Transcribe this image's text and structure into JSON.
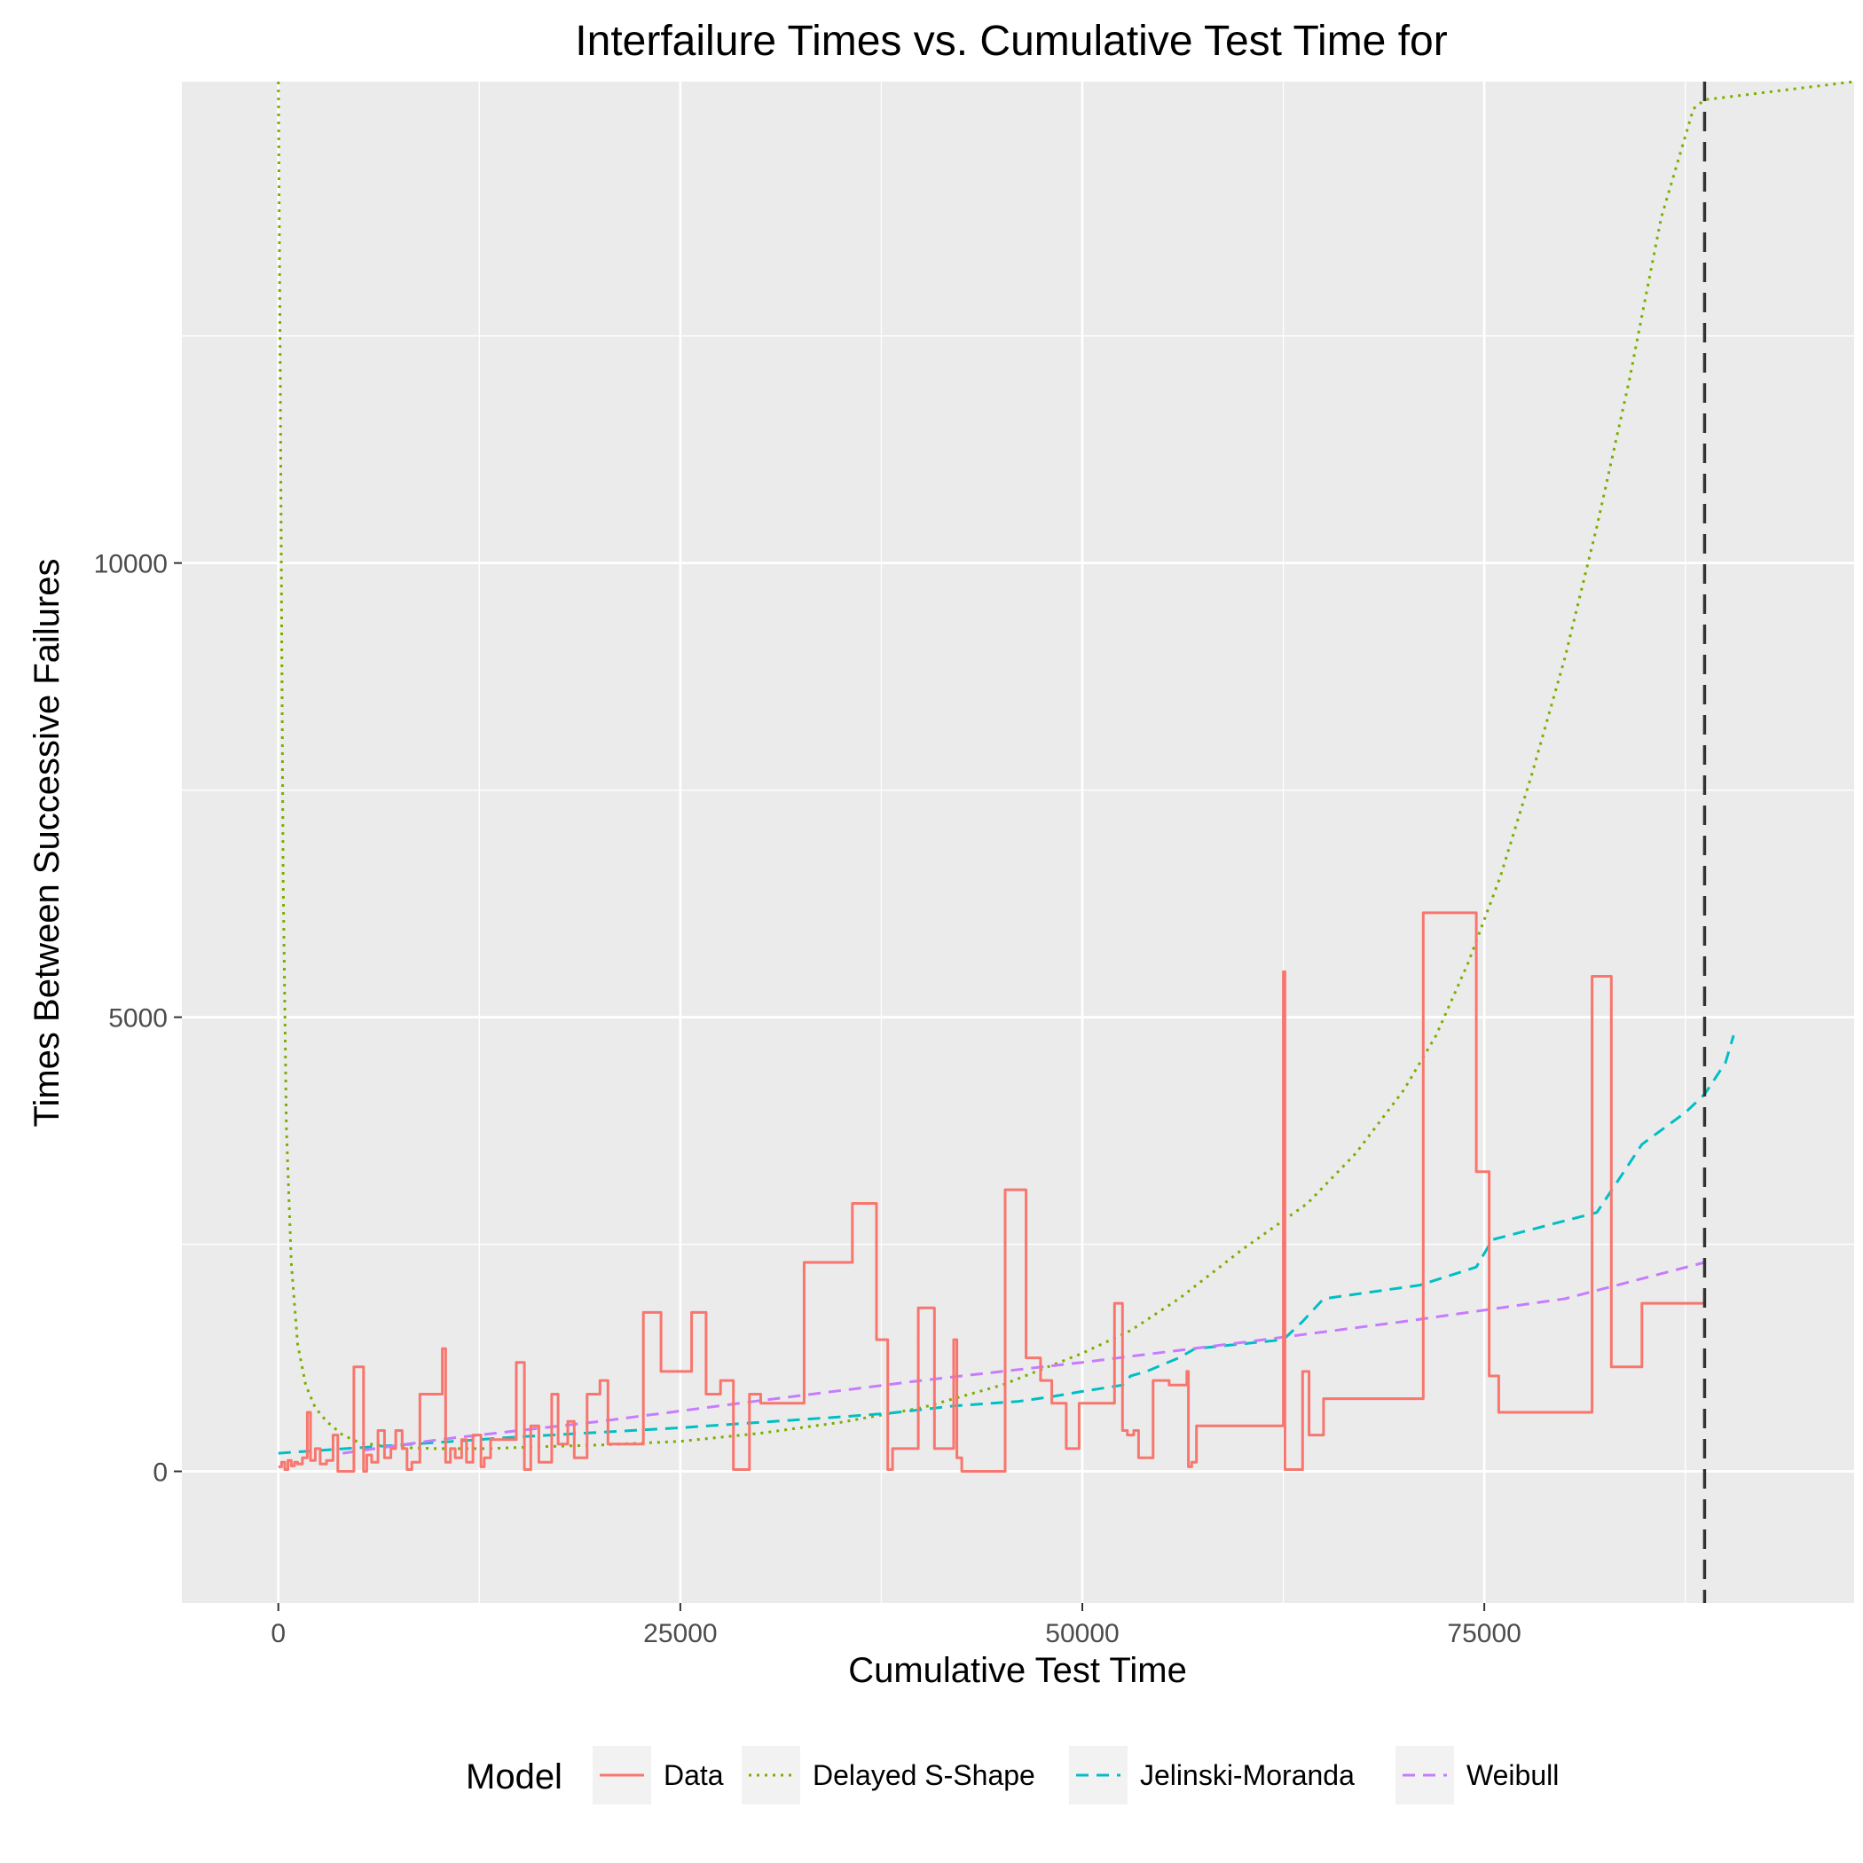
{
  "chart_data": {
    "type": "line",
    "title": "Interfailure Times vs. Cumulative Test Time for",
    "xlabel": "Cumulative Test Time",
    "ylabel": "Times Between Successive Failures",
    "xlim": [
      -6000,
      98000
    ],
    "ylim": [
      -1450,
      15300
    ],
    "x_ticks": [
      0,
      25000,
      50000,
      75000
    ],
    "y_ticks": [
      0,
      5000,
      10000
    ],
    "grid": true,
    "legend_position": "bottom",
    "legend_title": "Model",
    "vline": {
      "x": 88700,
      "color": "#333333",
      "dash": "dashed"
    },
    "series": [
      {
        "name": "Data",
        "color": "#F8766D",
        "dash": "solid",
        "step": true,
        "points": [
          [
            0,
            50
          ],
          [
            200,
            100
          ],
          [
            400,
            20
          ],
          [
            600,
            120
          ],
          [
            800,
            60
          ],
          [
            1000,
            100
          ],
          [
            1200,
            80
          ],
          [
            1500,
            150
          ],
          [
            1800,
            650
          ],
          [
            2000,
            120
          ],
          [
            2300,
            250
          ],
          [
            2600,
            80
          ],
          [
            3000,
            120
          ],
          [
            3400,
            400
          ],
          [
            3700,
            0
          ],
          [
            4400,
            0
          ],
          [
            4700,
            1150
          ],
          [
            5300,
            0
          ],
          [
            5500,
            180
          ],
          [
            5800,
            100
          ],
          [
            6200,
            450
          ],
          [
            6600,
            150
          ],
          [
            7000,
            250
          ],
          [
            7300,
            450
          ],
          [
            7700,
            250
          ],
          [
            8000,
            20
          ],
          [
            8300,
            100
          ],
          [
            8800,
            850
          ],
          [
            10200,
            1350
          ],
          [
            10400,
            100
          ],
          [
            10700,
            250
          ],
          [
            11000,
            150
          ],
          [
            11400,
            350
          ],
          [
            11700,
            100
          ],
          [
            12100,
            400
          ],
          [
            12600,
            50
          ],
          [
            12800,
            150
          ],
          [
            13200,
            350
          ],
          [
            14500,
            350
          ],
          [
            14800,
            1200
          ],
          [
            15300,
            20
          ],
          [
            15700,
            500
          ],
          [
            16200,
            100
          ],
          [
            17000,
            850
          ],
          [
            17400,
            300
          ],
          [
            18000,
            550
          ],
          [
            18400,
            150
          ],
          [
            19200,
            850
          ],
          [
            20000,
            1000
          ],
          [
            20500,
            300
          ],
          [
            22700,
            1750
          ],
          [
            23800,
            1100
          ],
          [
            25700,
            1750
          ],
          [
            26600,
            850
          ],
          [
            27500,
            1000
          ],
          [
            28300,
            20
          ],
          [
            29300,
            850
          ],
          [
            30000,
            750
          ],
          [
            32700,
            2300
          ],
          [
            35700,
            2950
          ],
          [
            37200,
            1450
          ],
          [
            37900,
            20
          ],
          [
            38200,
            250
          ],
          [
            39800,
            1800
          ],
          [
            40800,
            250
          ],
          [
            42000,
            1450
          ],
          [
            42200,
            150
          ],
          [
            42500,
            0
          ],
          [
            45200,
            3100
          ],
          [
            46500,
            1250
          ],
          [
            47400,
            1000
          ],
          [
            48100,
            750
          ],
          [
            49000,
            250
          ],
          [
            49800,
            750
          ],
          [
            52000,
            1850
          ],
          [
            52500,
            450
          ],
          [
            52800,
            400
          ],
          [
            53200,
            450
          ],
          [
            53500,
            150
          ],
          [
            54400,
            1000
          ],
          [
            55400,
            950
          ],
          [
            56500,
            1100
          ],
          [
            56600,
            50
          ],
          [
            56800,
            100
          ],
          [
            57100,
            500
          ],
          [
            62500,
            5500
          ],
          [
            62600,
            20
          ],
          [
            63700,
            1100
          ],
          [
            64100,
            400
          ],
          [
            65000,
            800
          ],
          [
            71200,
            6150
          ],
          [
            74500,
            3300
          ],
          [
            75300,
            1050
          ],
          [
            75900,
            650
          ],
          [
            81700,
            5450
          ],
          [
            82900,
            1150
          ],
          [
            84800,
            1850
          ],
          [
            88700,
            1850
          ]
        ]
      },
      {
        "name": "Delayed S-Shape",
        "color": "#7CAE00",
        "dash": "dotted",
        "step": false,
        "points": [
          [
            0,
            15300
          ],
          [
            100,
            12500
          ],
          [
            300,
            6500
          ],
          [
            500,
            3800
          ],
          [
            800,
            2300
          ],
          [
            1200,
            1400
          ],
          [
            1700,
            950
          ],
          [
            2300,
            700
          ],
          [
            3000,
            550
          ],
          [
            4000,
            400
          ],
          [
            5000,
            320
          ],
          [
            6500,
            280
          ],
          [
            8000,
            260
          ],
          [
            10000,
            250
          ],
          [
            13000,
            250
          ],
          [
            16000,
            270
          ],
          [
            20000,
            290
          ],
          [
            25000,
            330
          ],
          [
            30000,
            420
          ],
          [
            35000,
            540
          ],
          [
            40000,
            700
          ],
          [
            45000,
            950
          ],
          [
            50000,
            1300
          ],
          [
            53000,
            1550
          ],
          [
            56000,
            1900
          ],
          [
            60000,
            2450
          ],
          [
            64000,
            2950
          ],
          [
            67000,
            3500
          ],
          [
            70000,
            4200
          ],
          [
            72000,
            4800
          ],
          [
            74000,
            5600
          ],
          [
            76000,
            6550
          ],
          [
            78000,
            7700
          ],
          [
            80000,
            8950
          ],
          [
            82000,
            10400
          ],
          [
            84000,
            12000
          ],
          [
            86000,
            13800
          ],
          [
            88000,
            15000
          ],
          [
            88700,
            15100
          ],
          [
            98000,
            15300
          ]
        ]
      },
      {
        "name": "Jelinski-Moranda",
        "color": "#00BFC4",
        "dash": "dashed",
        "step": false,
        "points": [
          [
            0,
            200
          ],
          [
            5000,
            260
          ],
          [
            10000,
            320
          ],
          [
            15000,
            380
          ],
          [
            20000,
            430
          ],
          [
            25000,
            480
          ],
          [
            30000,
            540
          ],
          [
            35000,
            600
          ],
          [
            38000,
            640
          ],
          [
            42000,
            720
          ],
          [
            46000,
            770
          ],
          [
            48000,
            820
          ],
          [
            50000,
            880
          ],
          [
            52500,
            950
          ],
          [
            53000,
            1050
          ],
          [
            54000,
            1100
          ],
          [
            56000,
            1250
          ],
          [
            57000,
            1350
          ],
          [
            62500,
            1450
          ],
          [
            63700,
            1650
          ],
          [
            65000,
            1900
          ],
          [
            71000,
            2050
          ],
          [
            74500,
            2250
          ],
          [
            75500,
            2550
          ],
          [
            82000,
            2850
          ],
          [
            83500,
            3250
          ],
          [
            84800,
            3600
          ],
          [
            87500,
            3950
          ],
          [
            88700,
            4150
          ],
          [
            90000,
            4500
          ],
          [
            90500,
            4800
          ]
        ]
      },
      {
        "name": "Weibull",
        "color": "#C77CFF",
        "dash": "dashed",
        "step": false,
        "points": [
          [
            4000,
            200
          ],
          [
            10000,
            350
          ],
          [
            20000,
            550
          ],
          [
            30000,
            780
          ],
          [
            40000,
            1000
          ],
          [
            50000,
            1200
          ],
          [
            60000,
            1420
          ],
          [
            70000,
            1650
          ],
          [
            80000,
            1900
          ],
          [
            88700,
            2300
          ]
        ]
      }
    ]
  }
}
